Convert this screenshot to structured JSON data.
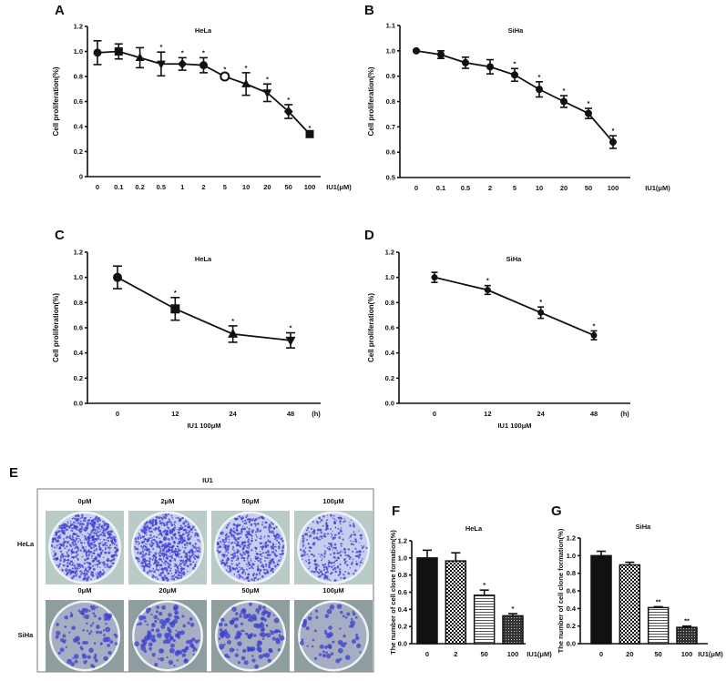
{
  "panel_letters": [
    "A",
    "B",
    "C",
    "D",
    "E",
    "F",
    "G"
  ],
  "chart_data": [
    {
      "panel": "A",
      "type": "line",
      "title": "HeLa",
      "ylabel": "Cell proliferation(%)",
      "xlabel": "",
      "x_unit": "IU1(μM)",
      "ylim": [
        0,
        1.2
      ],
      "yticks": [
        "0",
        "0.2",
        "0.4",
        "0.6",
        "0.8",
        "1.0",
        "1.2"
      ],
      "categories": [
        "0",
        "0.1",
        "0.2",
        "0.5",
        "1",
        "2",
        "5",
        "10",
        "20",
        "50",
        "100"
      ],
      "values": [
        0.99,
        1.0,
        0.95,
        0.9,
        0.9,
        0.89,
        0.8,
        0.74,
        0.67,
        0.52,
        0.34
      ],
      "errors": [
        0.095,
        0.06,
        0.08,
        0.095,
        0.05,
        0.06,
        0.02,
        0.09,
        0.07,
        0.055,
        0.01
      ],
      "significance": [
        "",
        "",
        "",
        "*",
        "*",
        "*",
        "*",
        "*",
        "*",
        "*",
        "*"
      ],
      "markers": [
        "circle",
        "square",
        "triangle-up",
        "triangle-down",
        "diamond",
        "circle",
        "open-circle",
        "triangle-up",
        "triangle-down",
        "diamond",
        "square"
      ]
    },
    {
      "panel": "B",
      "type": "line",
      "title": "SiHa",
      "ylabel": "Cell proliferation(%)",
      "xlabel": "",
      "x_unit": "IU1(μM)",
      "ylim": [
        0.5,
        1.1
      ],
      "yticks": [
        "0.5",
        "0.6",
        "0.7",
        "0.8",
        "0.9",
        "1.0",
        "1.1"
      ],
      "categories": [
        "0",
        "0.1",
        "0.5",
        "2",
        "5",
        "10",
        "20",
        "50",
        "100"
      ],
      "values": [
        1.0,
        0.985,
        0.953,
        0.937,
        0.905,
        0.848,
        0.8,
        0.753,
        0.64
      ],
      "errors": [
        0.003,
        0.015,
        0.022,
        0.028,
        0.025,
        0.03,
        0.023,
        0.02,
        0.025
      ],
      "significance": [
        "",
        "",
        "",
        "",
        "*",
        "*",
        "*",
        "*",
        "*"
      ]
    },
    {
      "panel": "C",
      "type": "line",
      "title": "HeLa",
      "ylabel": "Cell proliferation(%)",
      "xlabel": "IU1 100μM",
      "x_unit": "(h)",
      "ylim": [
        0,
        1.2
      ],
      "yticks": [
        "0.0",
        "0.2",
        "0.4",
        "0.6",
        "0.8",
        "1.0",
        "1.2"
      ],
      "categories": [
        "0",
        "12",
        "24",
        "48"
      ],
      "values": [
        1.0,
        0.75,
        0.55,
        0.5
      ],
      "errors": [
        0.09,
        0.09,
        0.065,
        0.06
      ],
      "significance": [
        "",
        "*",
        "*",
        "*"
      ],
      "markers": [
        "circle",
        "square",
        "triangle-up",
        "triangle-down"
      ]
    },
    {
      "panel": "D",
      "type": "line",
      "title": "SiHa",
      "ylabel": "Cell proliferation(%)",
      "xlabel": "IU1 100μM",
      "x_unit": "(h)",
      "ylim": [
        0,
        1.2
      ],
      "yticks": [
        "0.0",
        "0.2",
        "0.4",
        "0.6",
        "0.8",
        "1.0",
        "1.2"
      ],
      "categories": [
        "0",
        "12",
        "24",
        "48"
      ],
      "values": [
        1.0,
        0.9,
        0.72,
        0.54
      ],
      "errors": [
        0.04,
        0.035,
        0.045,
        0.035
      ],
      "significance": [
        "",
        "*",
        "*",
        "*"
      ]
    },
    {
      "panel": "F",
      "type": "bar",
      "title": "HeLa",
      "ylabel": "The number of cell clone formation(%)",
      "xlabel": "",
      "x_unit": "IU1(μM)",
      "ylim": [
        0,
        1.2
      ],
      "yticks": [
        "0.0",
        "0.2",
        "0.4",
        "0.6",
        "0.8",
        "1.0",
        "1.2"
      ],
      "categories": [
        "0",
        "2",
        "50",
        "100"
      ],
      "values": [
        1.0,
        0.965,
        0.565,
        0.325
      ],
      "errors": [
        0.09,
        0.095,
        0.06,
        0.025
      ],
      "significance": [
        "",
        "",
        "*",
        "*"
      ],
      "fills": [
        "solid",
        "checker",
        "hlines",
        "dots"
      ]
    },
    {
      "panel": "G",
      "type": "bar",
      "title": "SiHa",
      "ylabel": "The number of cell clone formation(%)",
      "xlabel": "",
      "x_unit": "IU1(μM)",
      "ylim": [
        0,
        1.2
      ],
      "yticks": [
        "0.0",
        "0.2",
        "0.4",
        "0.6",
        "0.8",
        "1.0",
        "1.2"
      ],
      "categories": [
        "0",
        "20",
        "50",
        "100"
      ],
      "values": [
        1.0,
        0.895,
        0.41,
        0.185
      ],
      "errors": [
        0.05,
        0.03,
        0.01,
        0.015
      ],
      "significance": [
        "",
        "",
        "**",
        "**"
      ],
      "fills": [
        "solid",
        "checker",
        "hlines",
        "dots"
      ]
    }
  ],
  "clone_image": {
    "panel": "E",
    "header": "IU1",
    "stain_color": "#3b3fd0",
    "rows": [
      {
        "label": "HeLa",
        "doses": [
          "0μM",
          "2μM",
          "50μM",
          "100μM"
        ]
      },
      {
        "label": "SiHa",
        "doses": [
          "0μM",
          "20μM",
          "50μM",
          "100μM"
        ]
      }
    ]
  }
}
